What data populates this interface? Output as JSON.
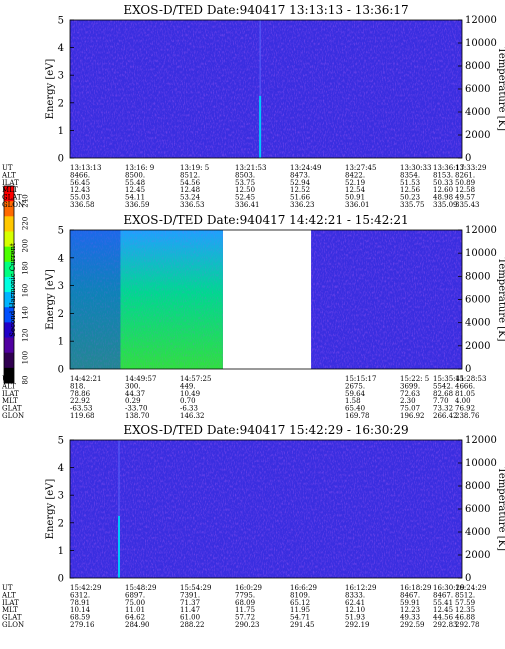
{
  "colorbar": {
    "label": "Second Harmonic Current",
    "ticks": [
      "240",
      "220",
      "200",
      "180",
      "160",
      "140",
      "120",
      "100",
      "80"
    ],
    "colors": [
      "#ff0000",
      "#ff6a00",
      "#ffc800",
      "#d6ff00",
      "#4dff00",
      "#00ff80",
      "#00ffe0",
      "#00b4ff",
      "#0050ff",
      "#2000c8",
      "#5000a0",
      "#300050",
      "#000000"
    ]
  },
  "chart_data": [
    {
      "type": "heatmap",
      "title": "EXOS-D/TED   Date:940417   13:13:13 - 13:36:17",
      "ylabel": "Energy [eV]",
      "y2label": "Temperature [K]",
      "ylim": [
        0,
        5
      ],
      "y2lim": [
        0,
        12000
      ],
      "yticks": [
        "0",
        "1",
        "2",
        "3",
        "4",
        "5"
      ],
      "y2ticks": [
        "0",
        "2000",
        "4000",
        "6000",
        "8000",
        "10000",
        "12000"
      ],
      "rows": [
        "UT",
        "ALT",
        "ILAT",
        "MLT",
        "GLAT",
        "GLON"
      ],
      "columns": [
        [
          "13:13:13",
          "8466.",
          "56.45",
          "12.43",
          "55.03",
          "336.58"
        ],
        [
          "13:16: 9",
          "8500.",
          "55.48",
          "12.45",
          "54.11",
          "336.59"
        ],
        [
          "13:19: 5",
          "8512.",
          "54.56",
          "12.48",
          "53.24",
          "336.53"
        ],
        [
          "13:21:53",
          "8503.",
          "53.75",
          "12.50",
          "52.45",
          "336.41"
        ],
        [
          "13:24:49",
          "8473.",
          "52.94",
          "12.52",
          "51.66",
          "336.23"
        ],
        [
          "13:27:45",
          "8422.",
          "52.19",
          "12.54",
          "50.91",
          "336.01"
        ],
        [
          "13:30:33",
          "8354.",
          "51.53",
          "12.56",
          "50.23",
          "335.75"
        ],
        [
          "13:33:29",
          "8261.",
          "50.89",
          "12.58",
          "49.57",
          "335.43"
        ],
        [
          "13:36:17",
          "8153.",
          "50.33",
          "12.60",
          "48.98",
          "335.09"
        ]
      ],
      "data_segments": [
        [
          0,
          1
        ]
      ],
      "features": [
        {
          "x": 0.485,
          "type": "spike",
          "level": "high"
        }
      ]
    },
    {
      "type": "heatmap",
      "title": "EXOS-D/TED   Date:940417   14:42:21 - 15:42:21",
      "ylabel": "Energy [eV]",
      "y2label": "Temperature [K]",
      "ylim": [
        0,
        5
      ],
      "y2lim": [
        0,
        12000
      ],
      "yticks": [
        "0",
        "1",
        "2",
        "3",
        "4",
        "5"
      ],
      "y2ticks": [
        "0",
        "2000",
        "4000",
        "6000",
        "8000",
        "10000",
        "12000"
      ],
      "rows": [
        "UT",
        "ALT",
        "ILAT",
        "MLT",
        "GLAT",
        "GLON"
      ],
      "columns": [
        [
          "14:42:21",
          "818.",
          "78.86",
          "22.92",
          "-63.53",
          "119.68"
        ],
        [
          "14:49:57",
          "300.",
          "44.37",
          "0.29",
          "-33.70",
          "138.70"
        ],
        [
          "14:57:25",
          "449.",
          "10.49",
          "0.70",
          "-6.33",
          "146.32"
        ],
        [
          "",
          "",
          "",
          "",
          "",
          ""
        ],
        [
          "",
          "",
          "",
          "",
          "",
          ""
        ],
        [
          "15:15:17",
          "2675.",
          "59.64",
          "1.58",
          "65.40",
          "169.78"
        ],
        [
          "15:22: 5",
          "3699.",
          "72.63",
          "2.30",
          "75.07",
          "196.92"
        ],
        [
          "15:28:53",
          "4666.",
          "81.05",
          "4.00",
          "76.92",
          "238.76"
        ],
        [
          "15:35:41",
          "5542.",
          "82.68",
          "7.70",
          "73.32",
          "266.42"
        ]
      ],
      "data_segments": [
        [
          0,
          0.39
        ],
        [
          0.615,
          1
        ]
      ],
      "features": [
        {
          "x_range": [
            0,
            0.39
          ],
          "type": "enhanced-band",
          "level": "medium"
        }
      ]
    },
    {
      "type": "heatmap",
      "title": "EXOS-D/TED   Date:940417   15:42:29 - 16:30:29",
      "ylabel": "Energy [eV]",
      "y2label": "Temperature [K]",
      "ylim": [
        0,
        5
      ],
      "y2lim": [
        0,
        12000
      ],
      "yticks": [
        "0",
        "1",
        "2",
        "3",
        "4",
        "5"
      ],
      "y2ticks": [
        "0",
        "2000",
        "4000",
        "6000",
        "8000",
        "10000",
        "12000"
      ],
      "rows": [
        "UT",
        "ALT",
        "ILAT",
        "MLT",
        "GLAT",
        "GLON"
      ],
      "columns": [
        [
          "15:42:29",
          "6312.",
          "78.91",
          "10.14",
          "68.59",
          "279.16"
        ],
        [
          "15:48:29",
          "6897.",
          "75.00",
          "11.01",
          "64.62",
          "284.90"
        ],
        [
          "15:54:29",
          "7391.",
          "71.37",
          "11.47",
          "61.00",
          "288.22"
        ],
        [
          "16:0:29",
          "7795.",
          "68.09",
          "11.75",
          "57.72",
          "290.23"
        ],
        [
          "16:6:29",
          "8109.",
          "65.12",
          "11.95",
          "54.71",
          "291.45"
        ],
        [
          "16:12:29",
          "8333.",
          "62.41",
          "12.10",
          "51.93",
          "292.19"
        ],
        [
          "16:18:29",
          "8467.",
          "59.91",
          "12.23",
          "49.33",
          "292.59"
        ],
        [
          "16:24:29",
          "8512.",
          "57.59",
          "12.35",
          "46.88",
          "292.78"
        ],
        [
          "16:30:29",
          "8467.",
          "55.41",
          "12.45",
          "44.56",
          "292.83"
        ]
      ],
      "data_segments": [
        [
          0,
          1
        ]
      ],
      "features": [
        {
          "x": 0.125,
          "type": "spike",
          "level": "high"
        }
      ]
    }
  ]
}
